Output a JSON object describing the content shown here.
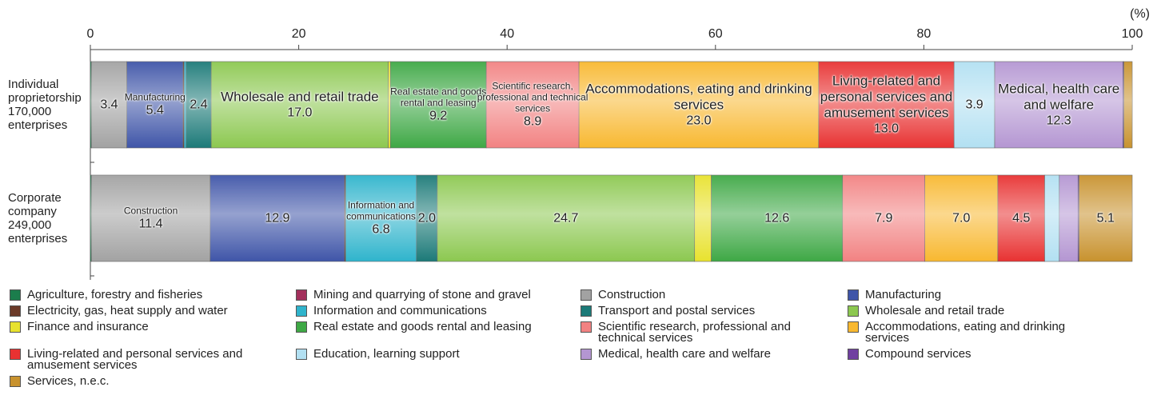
{
  "chart_data": {
    "type": "stacked_bar_horizontal",
    "unit": "(%)",
    "categories": [
      "Individual proprietorship 170,000 enterprises",
      "Corporate company 249,000 enterprises"
    ],
    "xlim": [
      0,
      100
    ],
    "xticks": [
      0,
      20,
      40,
      60,
      80,
      100
    ],
    "legend": "bottom",
    "series": [
      {
        "name": "Agriculture, forestry and fisheries",
        "color": "#1b7d4c",
        "values": [
          0.1,
          0.1
        ],
        "value_labels": [
          null,
          null
        ],
        "show_name": [
          false,
          false
        ]
      },
      {
        "name": "Mining and quarrying of stone and gravel",
        "color": "#a3305c",
        "values": [
          0,
          0
        ],
        "value_labels": [
          null,
          null
        ],
        "show_name": [
          false,
          false
        ]
      },
      {
        "name": "Construction",
        "color": "#a2a2a2",
        "values": [
          3.4,
          11.4
        ],
        "value_labels": [
          "3.4",
          "11.4"
        ],
        "show_name": [
          false,
          true
        ]
      },
      {
        "name": "Manufacturing",
        "color": "#3f55a8",
        "values": [
          5.4,
          12.9
        ],
        "value_labels": [
          "5.4",
          "12.9"
        ],
        "show_name": [
          true,
          false
        ]
      },
      {
        "name": "Electricity, gas, heat supply and water",
        "color": "#6b3a28",
        "values": [
          0.1,
          0.1
        ],
        "value_labels": [
          null,
          null
        ],
        "show_name": [
          false,
          false
        ]
      },
      {
        "name": "Information and communications",
        "color": "#2fb4cc",
        "values": [
          0.2,
          6.8
        ],
        "value_labels": [
          null,
          "6.8"
        ],
        "show_name": [
          false,
          true
        ]
      },
      {
        "name": "Transport and postal services",
        "color": "#1c7a78",
        "values": [
          2.4,
          2.0
        ],
        "value_labels": [
          "2.4",
          "2.0"
        ],
        "show_name": [
          false,
          false
        ]
      },
      {
        "name": "Wholesale and retail trade",
        "color": "#8cc850",
        "values": [
          17.0,
          24.7
        ],
        "value_labels": [
          "17.0",
          "24.7"
        ],
        "show_name": [
          true,
          false
        ]
      },
      {
        "name": "Finance and insurance",
        "color": "#e8e22e",
        "values": [
          0.2,
          1.6
        ],
        "value_labels": [
          null,
          null
        ],
        "show_name": [
          false,
          false
        ]
      },
      {
        "name": "Real estate and goods rental and leasing",
        "color": "#3ea845",
        "values": [
          9.2,
          12.6
        ],
        "value_labels": [
          "9.2",
          "12.6"
        ],
        "show_name": [
          true,
          false
        ]
      },
      {
        "name": "Scientific research, professional and technical services",
        "color": "#f28282",
        "values": [
          8.9,
          7.9
        ],
        "value_labels": [
          "8.9",
          "7.9"
        ],
        "show_name": [
          true,
          false
        ]
      },
      {
        "name": "Accommodations, eating and drinking services",
        "color": "#f8b830",
        "values": [
          23.0,
          7.0
        ],
        "value_labels": [
          "23.0",
          "7.0"
        ],
        "show_name": [
          true,
          false
        ]
      },
      {
        "name": "Living-related and personal services and amusement services",
        "color": "#e83232",
        "values": [
          13.0,
          4.5
        ],
        "value_labels": [
          "13.0",
          "4.5"
        ],
        "show_name": [
          true,
          false
        ]
      },
      {
        "name": "Education, learning support",
        "color": "#b2e0f2",
        "values": [
          3.9,
          1.4
        ],
        "value_labels": [
          "3.9",
          null
        ],
        "show_name": [
          false,
          false
        ]
      },
      {
        "name": "Medical, health care and welfare",
        "color": "#b496d2",
        "values": [
          12.3,
          1.8
        ],
        "value_labels": [
          "12.3",
          null
        ],
        "show_name": [
          true,
          false
        ]
      },
      {
        "name": "Compound services",
        "color": "#7040a0",
        "values": [
          0.1,
          0.1
        ],
        "value_labels": [
          null,
          null
        ],
        "show_name": [
          false,
          false
        ]
      },
      {
        "name": "Services, n.e.c.",
        "color": "#c8922e",
        "values": [
          0.8,
          5.1
        ],
        "value_labels": [
          null,
          "5.1"
        ],
        "show_name": [
          false,
          false
        ]
      }
    ]
  }
}
